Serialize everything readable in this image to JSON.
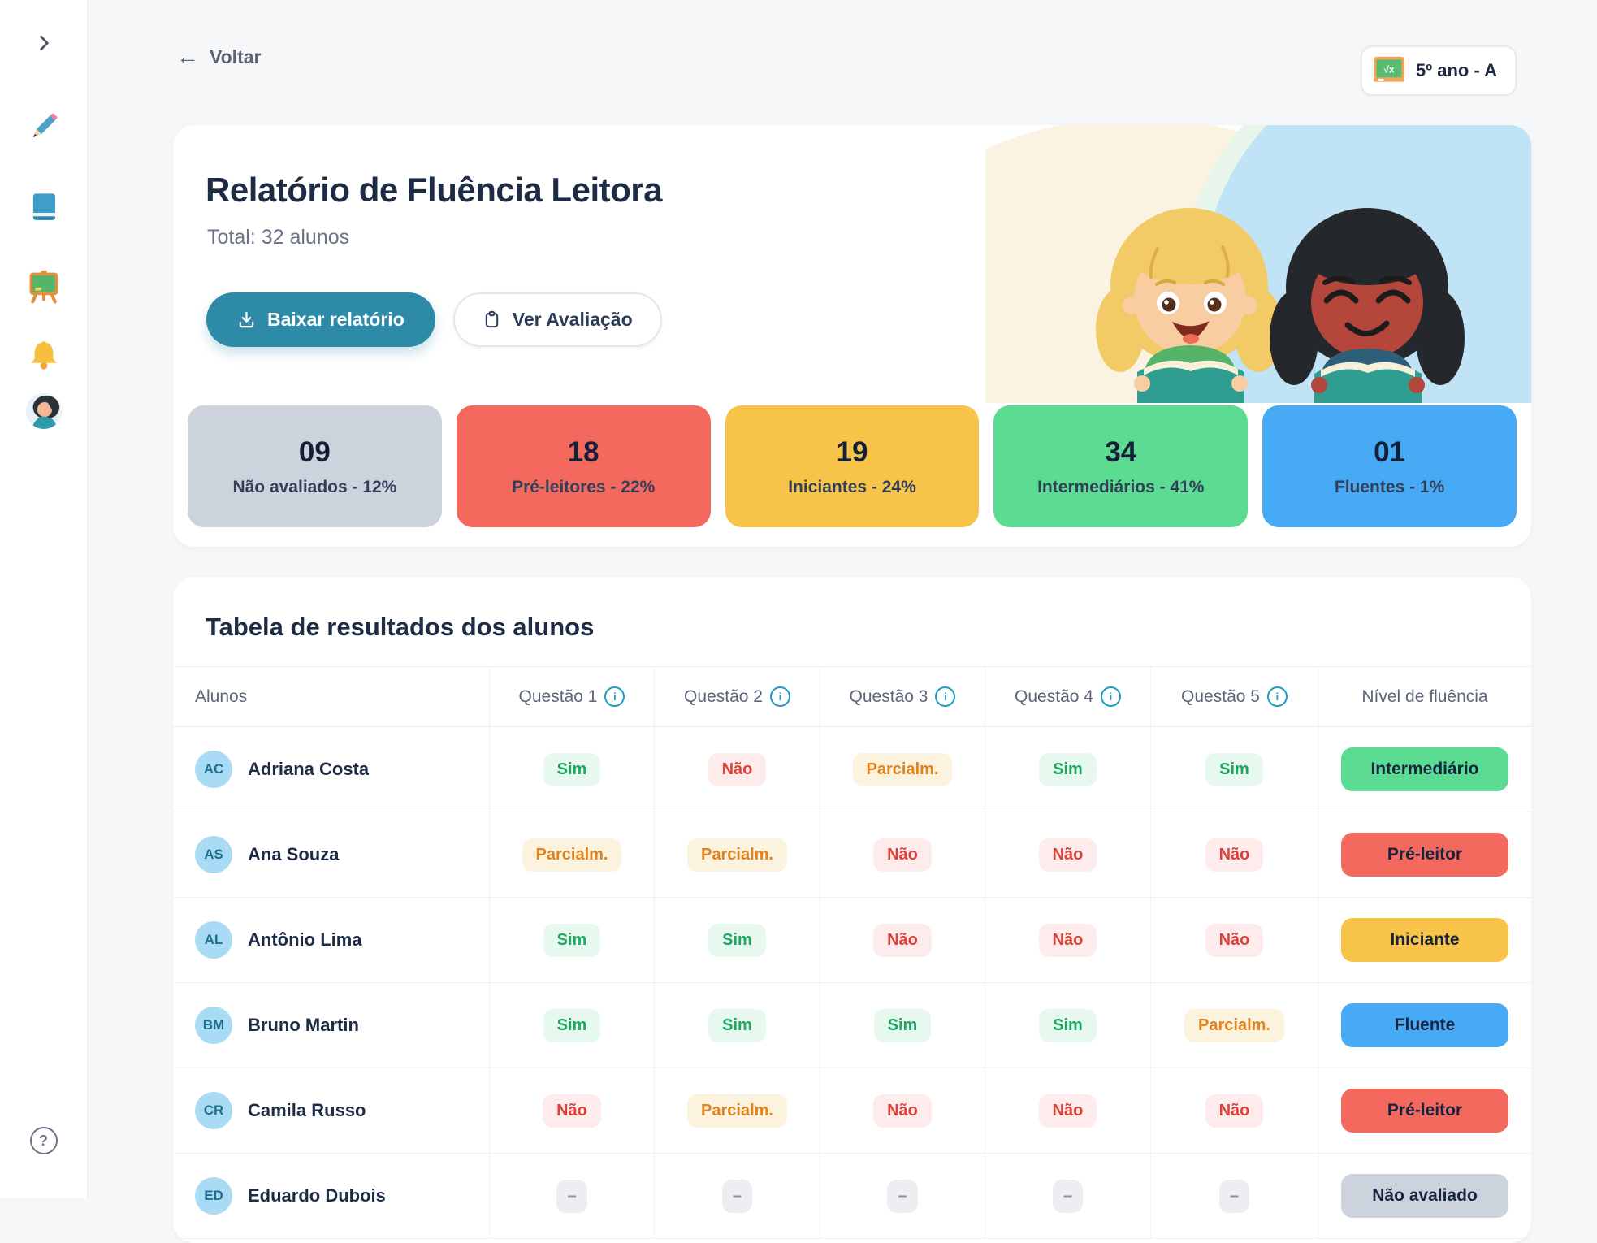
{
  "topbar": {
    "back_arrow": "←",
    "back_label": "Voltar",
    "class_label": "5º ano - A",
    "class_icon_text": "√x"
  },
  "header": {
    "title": "Relatório de Fluência Leitora",
    "subtitle": "Total: 32 alunos",
    "download_button": "Baixar relatório",
    "view_button": "Ver Avaliação"
  },
  "stats": [
    {
      "value": "09",
      "label": "Não avaliados - 12%",
      "color": "#CDD3DC"
    },
    {
      "value": "18",
      "label": "Pré-leitores - 22%",
      "color": "#F3695D"
    },
    {
      "value": "19",
      "label": "Iniciantes - 24%",
      "color": "#F8C349"
    },
    {
      "value": "34",
      "label": "Intermediários - 41%",
      "color": "#5CDB92"
    },
    {
      "value": "01",
      "label": "Fluentes - 1%",
      "color": "#47AAF4"
    }
  ],
  "table": {
    "title": "Tabela de resultados dos alunos",
    "info_glyph": "i",
    "columns": [
      {
        "label": "Alunos",
        "info": false
      },
      {
        "label": "Questão 1",
        "info": true
      },
      {
        "label": "Questão 2",
        "info": true
      },
      {
        "label": "Questão 3",
        "info": true
      },
      {
        "label": "Questão 4",
        "info": true
      },
      {
        "label": "Questão 5",
        "info": true
      },
      {
        "label": "Nível de fluência",
        "info": false
      }
    ],
    "answer_styles": {
      "Sim": {
        "bg": "#E7F8EE",
        "text": "#1FA663"
      },
      "Não": {
        "bg": "#FDECEB",
        "text": "#DF4037"
      },
      "Parcialm.": {
        "bg": "#FCF3DE",
        "text": "#E2821C"
      },
      "-": {
        "bg": "#ECEEF2",
        "text": "#8A92A3"
      }
    },
    "level_colors": {
      "Intermediário": "#5CDB92",
      "Pré-leitor": "#F3695D",
      "Iniciante": "#F8C349",
      "Fluente": "#47AAF4",
      "Não avaliado": "#CDD3DC"
    },
    "rows": [
      {
        "initials": "AC",
        "name": "Adriana Costa",
        "answers": [
          "Sim",
          "Não",
          "Parcialm.",
          "Sim",
          "Sim"
        ],
        "level": "Intermediário"
      },
      {
        "initials": "AS",
        "name": "Ana Souza",
        "answers": [
          "Parcialm.",
          "Parcialm.",
          "Não",
          "Não",
          "Não"
        ],
        "level": "Pré-leitor"
      },
      {
        "initials": "AL",
        "name": "Antônio Lima",
        "answers": [
          "Sim",
          "Sim",
          "Não",
          "Não",
          "Não"
        ],
        "level": "Iniciante"
      },
      {
        "initials": "BM",
        "name": "Bruno Martin",
        "answers": [
          "Sim",
          "Sim",
          "Sim",
          "Sim",
          "Parcialm."
        ],
        "level": "Fluente"
      },
      {
        "initials": "CR",
        "name": "Camila Russo",
        "answers": [
          "Não",
          "Parcialm.",
          "Não",
          "Não",
          "Não"
        ],
        "level": "Pré-leitor"
      },
      {
        "initials": "ED",
        "name": "Eduardo Dubois",
        "answers": [
          "-",
          "-",
          "-",
          "-",
          "-"
        ],
        "level": "Não avaliado"
      }
    ]
  },
  "sidebar": {
    "help_glyph": "?"
  },
  "colors": {
    "accent_teal": "#2E8BA8",
    "page_background": "#F6F7F9",
    "info_icon": "#1E9CC6",
    "avatar_bg": "#A9DCF4"
  }
}
